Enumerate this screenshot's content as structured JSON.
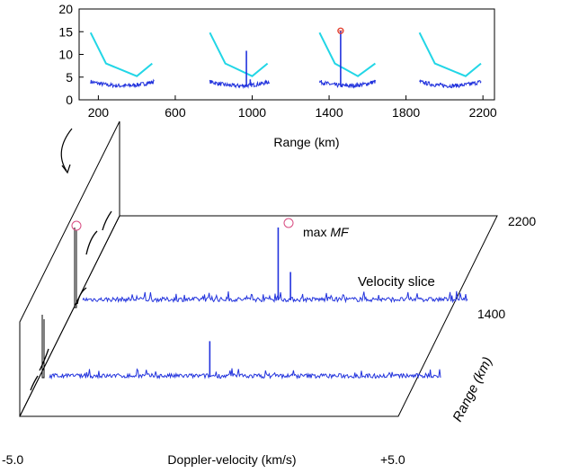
{
  "chart_data": [
    {
      "type": "line",
      "xlabel": "Range (km)",
      "xticks": [
        200,
        600,
        1000,
        1400,
        1800,
        2200
      ],
      "yticks": [
        0,
        5,
        10,
        15,
        20
      ],
      "xlim": [
        100,
        2260
      ],
      "ylim": [
        0,
        20
      ],
      "colors": {
        "threshold": "#22d6e6",
        "mf": "#2233dd",
        "marker": "#e23b2a"
      },
      "segments": [
        {
          "threshold_x": [
            160,
            240,
            400,
            480
          ],
          "threshold_y": [
            14.8,
            8,
            5.2,
            8
          ],
          "noise_x_range": [
            160,
            490
          ],
          "noise_level": 3.1,
          "spikes": []
        },
        {
          "threshold_x": [
            780,
            860,
            1000,
            1080
          ],
          "threshold_y": [
            14.8,
            8,
            5.2,
            8
          ],
          "noise_x_range": [
            780,
            1090
          ],
          "noise_level": 3.1,
          "spikes": [
            {
              "x": 970,
              "y": 10.8
            },
            {
              "x": 990,
              "y": 4.5
            }
          ]
        },
        {
          "threshold_x": [
            1350,
            1430,
            1550,
            1640
          ],
          "threshold_y": [
            14.8,
            8,
            5.2,
            8
          ],
          "noise_x_range": [
            1350,
            1640
          ],
          "noise_level": 3.1,
          "spikes": [
            {
              "x": 1460,
              "y": 15.2,
              "marker": true
            }
          ]
        },
        {
          "threshold_x": [
            1870,
            1950,
            2110,
            2190
          ],
          "threshold_y": [
            14.8,
            8,
            5.2,
            8
          ],
          "noise_x_range": [
            1870,
            2190
          ],
          "noise_level": 3.1,
          "spikes": []
        }
      ]
    },
    {
      "type": "3d-slices",
      "xlabel": "Doppler-velocity (km/s)",
      "xlim_labels": [
        "-5.0",
        "+5.0"
      ],
      "zlabel": "Range (km)",
      "zticks": [
        "2200",
        "1400"
      ],
      "annotation": "max",
      "annotation_italic": "MF",
      "slice_label": "Velocity slice",
      "slices": [
        {
          "range": 1400,
          "spikes": [
            {
              "v": 0.08,
              "h": 0.9
            },
            {
              "v": 0.4,
              "h": 0.35
            }
          ]
        },
        {
          "range": 1000,
          "spikes": [
            {
              "v": -0.9,
              "h": 0.6
            }
          ]
        }
      ]
    }
  ]
}
